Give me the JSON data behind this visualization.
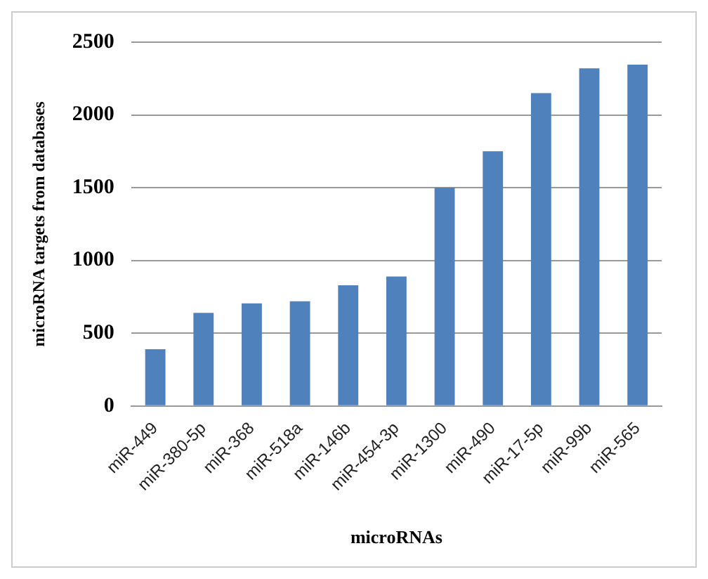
{
  "chart_data": {
    "type": "bar",
    "xlabel": "microRNAs",
    "ylabel": "microRNA targets from databases",
    "categories": [
      "miR-449",
      "miR-380-5p",
      "miR-368",
      "miR-518a",
      "miR-146b",
      "miR-454-3p",
      "miR-1300",
      "miR-490",
      "miR-17-5p",
      "miR-99b",
      "miR-565"
    ],
    "values": [
      390,
      640,
      705,
      720,
      830,
      890,
      1500,
      1750,
      2150,
      2320,
      2345
    ],
    "color": "#4f81bd",
    "ylim": [
      0,
      2500
    ],
    "yticks": [
      0,
      500,
      1000,
      1500,
      2000,
      2500
    ],
    "grid": "y",
    "legend": false
  }
}
